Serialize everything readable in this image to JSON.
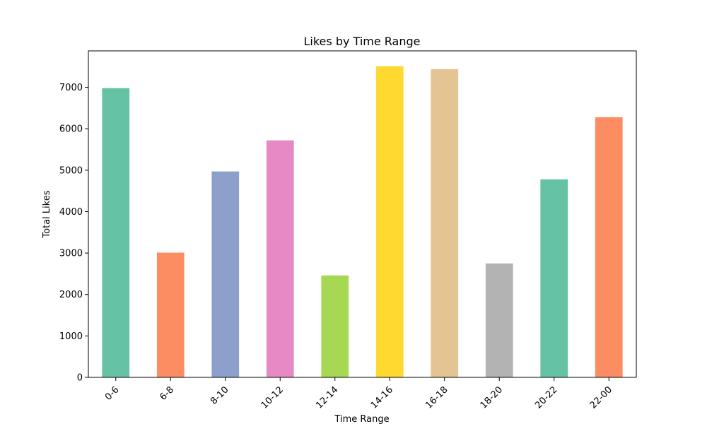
{
  "chart_data": {
    "type": "bar",
    "title": "Likes by Time Range",
    "xlabel": "Time Range",
    "ylabel": "Total Likes",
    "categories": [
      "0-6",
      "6-8",
      "8-10",
      "10-12",
      "12-14",
      "14-16",
      "16-18",
      "18-20",
      "20-22",
      "22-00"
    ],
    "values": [
      6980,
      3010,
      4970,
      5720,
      2460,
      7510,
      7440,
      2750,
      4780,
      6280
    ],
    "colors": [
      "#66c2a5",
      "#fc8d62",
      "#8da0cb",
      "#e78ac3",
      "#a6d854",
      "#ffd92f",
      "#e5c494",
      "#b3b3b3",
      "#66c2a5",
      "#fc8d62"
    ],
    "ylim": [
      0,
      7880
    ],
    "yticks": [
      0,
      1000,
      2000,
      3000,
      4000,
      5000,
      6000,
      7000
    ],
    "grid": false,
    "legend": "none"
  }
}
